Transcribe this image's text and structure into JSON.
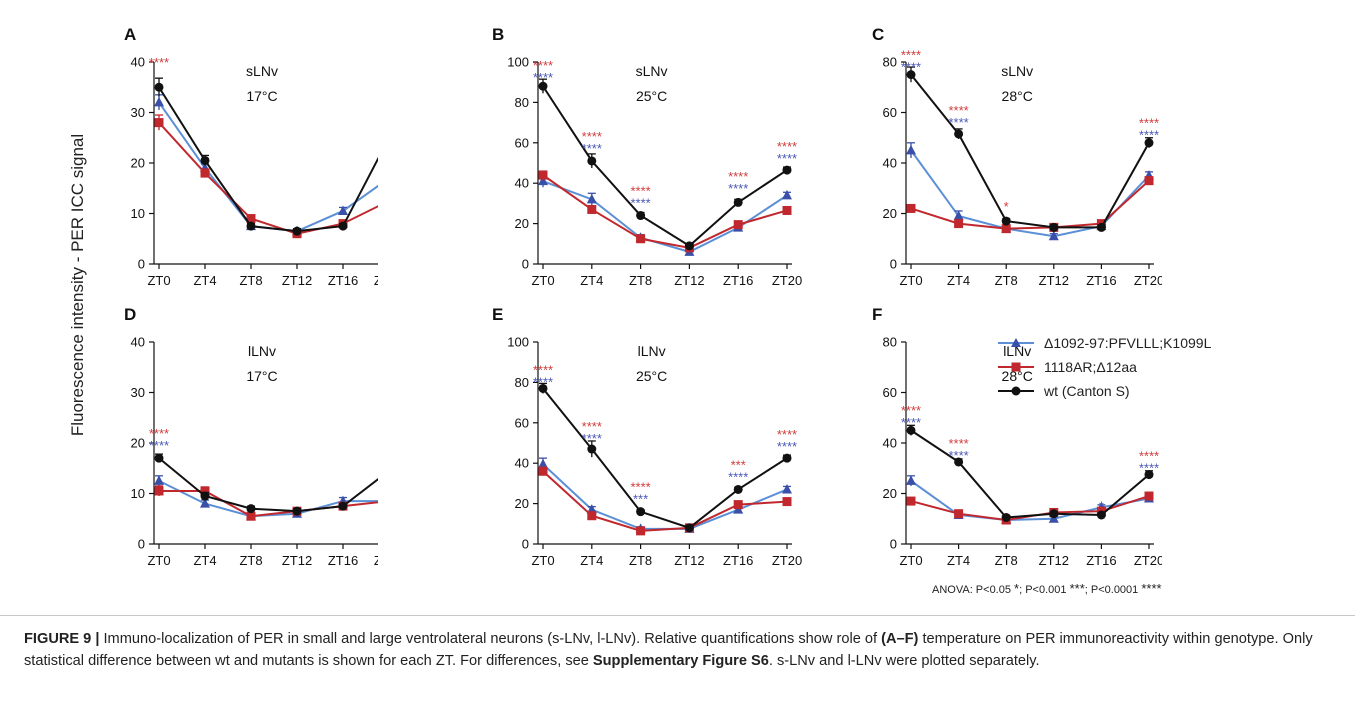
{
  "figure": {
    "y_axis_label": "Fluorescence intensity - PER ICC signal",
    "legend": [
      {
        "label": "Δ1092-97:PFVLLL;K1099L",
        "color": "#5b8fd6",
        "marker": "triangle-icon"
      },
      {
        "label": "1118AR;Δ12aa",
        "color": "#c0282e",
        "marker": "square-icon"
      },
      {
        "label": "wt (Canton S)",
        "color": "#111111",
        "marker": "circle-icon"
      }
    ],
    "anova": {
      "prefix": "ANOVA: P<0.05",
      "s1": "*",
      "mid1": "; P<0.001",
      "s2": "***",
      "mid2": "; P<0.0001",
      "s3": "****"
    },
    "caption": {
      "figure_label": "FIGURE 9 |",
      "t1": " Immuno-localization of PER in small and large ventrolateral neurons (s-LNv, l-LNv). Relative quantifications show role of ",
      "b1": "(A–F)",
      "t2": " temperature on PER immunoreactivity within genotype. Only statistical difference between wt and mutants is shown for each ZT. For differences, see ",
      "b2": "Supplementary Figure S6",
      "t3": ". s-LNv and l-LNv were plotted separately."
    }
  },
  "colors": {
    "blue": "#5b8fd6",
    "red": "#c0282e",
    "black": "#111111",
    "star_red": "#d23c3c",
    "star_blue": "#4a58b8"
  },
  "chart_data": [
    {
      "panel": "A",
      "type": "line",
      "title": "sLNv",
      "subtitle": "17°C",
      "categories": [
        "ZT0",
        "ZT4",
        "ZT8",
        "ZT12",
        "ZT16",
        "ZT20"
      ],
      "ylim": [
        0,
        40
      ],
      "yticks": [
        0,
        10,
        20,
        30,
        40
      ],
      "series": [
        {
          "name": "Δ1092-97:PFVLLL;K1099L",
          "color": "#5b8fd6",
          "marker": "triangle",
          "values": [
            32,
            19,
            7.5,
            6.5,
            10.5,
            17
          ],
          "err": [
            1.5,
            0.8,
            0.5,
            0.5,
            0.7,
            1.2
          ]
        },
        {
          "name": "1118AR;Δ12aa",
          "color": "#c0282e",
          "marker": "square",
          "values": [
            28,
            18,
            9,
            6,
            8,
            12.5
          ],
          "err": [
            1.5,
            0.8,
            0.5,
            0.5,
            0.5,
            0.8
          ]
        },
        {
          "name": "wt (Canton S)",
          "color": "#111111",
          "marker": "circle",
          "values": [
            35,
            20.5,
            7.5,
            6.5,
            7.5,
            25
          ],
          "err": [
            1.8,
            1,
            0.5,
            0.5,
            0.5,
            1.2
          ]
        }
      ],
      "sig": [
        {
          "category": "ZT0",
          "value": 39,
          "red": "****",
          "blue": ""
        },
        {
          "category": "ZT20",
          "value": 28,
          "red": "****",
          "blue": "****"
        }
      ]
    },
    {
      "panel": "B",
      "type": "line",
      "title": "sLNv",
      "subtitle": "25°C",
      "categories": [
        "ZT0",
        "ZT4",
        "ZT8",
        "ZT12",
        "ZT16",
        "ZT20"
      ],
      "ylim": [
        0,
        100
      ],
      "yticks": [
        0,
        20,
        40,
        60,
        80,
        100
      ],
      "series": [
        {
          "name": "Δ1092-97:PFVLLL;K1099L",
          "color": "#5b8fd6",
          "marker": "triangle",
          "values": [
            41,
            32,
            13,
            6,
            18,
            34
          ],
          "err": [
            3,
            3,
            1.5,
            1,
            1.5,
            1.5
          ]
        },
        {
          "name": "1118AR;Δ12aa",
          "color": "#c0282e",
          "marker": "square",
          "values": [
            44,
            27,
            12.5,
            8,
            19.5,
            26.5
          ],
          "err": [
            2,
            1.5,
            1,
            1,
            1,
            1
          ]
        },
        {
          "name": "wt (Canton S)",
          "color": "#111111",
          "marker": "circle",
          "values": [
            88,
            51,
            24,
            9,
            30.5,
            46.5
          ],
          "err": [
            3.5,
            3.5,
            1.5,
            1,
            1.5,
            1.5
          ]
        }
      ],
      "sig": [
        {
          "category": "ZT0",
          "value": 96,
          "red": "****",
          "blue": "****"
        },
        {
          "category": "ZT4",
          "value": 61,
          "red": "****",
          "blue": "****"
        },
        {
          "category": "ZT8",
          "value": 34,
          "red": "****",
          "blue": "****"
        },
        {
          "category": "ZT16",
          "value": 41,
          "red": "****",
          "blue": "****"
        },
        {
          "category": "ZT20",
          "value": 56,
          "red": "****",
          "blue": "****"
        }
      ]
    },
    {
      "panel": "C",
      "type": "line",
      "title": "sLNv",
      "subtitle": "28°C",
      "categories": [
        "ZT0",
        "ZT4",
        "ZT8",
        "ZT12",
        "ZT16",
        "ZT20"
      ],
      "ylim": [
        0,
        80
      ],
      "yticks": [
        0,
        20,
        40,
        60,
        80
      ],
      "series": [
        {
          "name": "Δ1092-97:PFVLLL;K1099L",
          "color": "#5b8fd6",
          "marker": "triangle",
          "values": [
            45,
            19,
            14,
            11,
            15,
            35
          ],
          "err": [
            3,
            2,
            1,
            1,
            1,
            1.5
          ]
        },
        {
          "name": "1118AR;Δ12aa",
          "color": "#c0282e",
          "marker": "square",
          "values": [
            22,
            16,
            14,
            14.5,
            16,
            33
          ],
          "err": [
            1,
            1,
            1,
            1,
            1,
            1.5
          ]
        },
        {
          "name": "wt (Canton S)",
          "color": "#111111",
          "marker": "circle",
          "values": [
            75,
            51.5,
            17,
            14.5,
            14.5,
            48
          ],
          "err": [
            3,
            2,
            1,
            1,
            1,
            2
          ]
        }
      ],
      "sig": [
        {
          "category": "ZT0",
          "value": 81,
          "red": "****",
          "blue": "****"
        },
        {
          "category": "ZT4",
          "value": 59,
          "red": "****",
          "blue": "****"
        },
        {
          "category": "ZT8",
          "value": 21,
          "red": "*",
          "blue": ""
        },
        {
          "category": "ZT20",
          "value": 54,
          "red": "****",
          "blue": "****"
        }
      ]
    },
    {
      "panel": "D",
      "type": "line",
      "title": "lLNv",
      "subtitle": "17°C",
      "categories": [
        "ZT0",
        "ZT4",
        "ZT8",
        "ZT12",
        "ZT16",
        "ZT20"
      ],
      "ylim": [
        0,
        40
      ],
      "yticks": [
        0,
        10,
        20,
        30,
        40
      ],
      "series": [
        {
          "name": "Δ1092-97:PFVLLL;K1099L",
          "color": "#5b8fd6",
          "marker": "triangle",
          "values": [
            12.5,
            8,
            5.5,
            6,
            8.5,
            8.5
          ],
          "err": [
            1,
            0.7,
            0.5,
            0.5,
            0.7,
            0.5
          ]
        },
        {
          "name": "1118AR;Δ12aa",
          "color": "#c0282e",
          "marker": "square",
          "values": [
            10.5,
            10.5,
            5.5,
            6.5,
            7.5,
            8.5
          ],
          "err": [
            1,
            0.8,
            0.5,
            0.5,
            0.5,
            0.5
          ]
        },
        {
          "name": "wt (Canton S)",
          "color": "#111111",
          "marker": "circle",
          "values": [
            17,
            9.5,
            7,
            6.5,
            7.5,
            14.5
          ],
          "err": [
            0.8,
            0.7,
            0.5,
            0.5,
            0.5,
            0.7
          ]
        }
      ],
      "sig": [
        {
          "category": "ZT0",
          "value": 21,
          "red": "****",
          "blue": "****"
        },
        {
          "category": "ZT20",
          "value": 18,
          "red": "****",
          "blue": "****"
        }
      ]
    },
    {
      "panel": "E",
      "type": "line",
      "title": "lLNv",
      "subtitle": "25°C",
      "categories": [
        "ZT0",
        "ZT4",
        "ZT8",
        "ZT12",
        "ZT16",
        "ZT20"
      ],
      "ylim": [
        0,
        100
      ],
      "yticks": [
        0,
        20,
        40,
        60,
        80,
        100
      ],
      "series": [
        {
          "name": "Δ1092-97:PFVLLL;K1099L",
          "color": "#5b8fd6",
          "marker": "triangle",
          "values": [
            39.5,
            17,
            7.5,
            7.5,
            17,
            27
          ],
          "err": [
            3,
            1.5,
            1,
            1,
            1.5,
            1.5
          ]
        },
        {
          "name": "1118AR;Δ12aa",
          "color": "#c0282e",
          "marker": "square",
          "values": [
            36,
            14,
            6.5,
            8,
            19.5,
            21
          ],
          "err": [
            2,
            1,
            1,
            1,
            1,
            1
          ]
        },
        {
          "name": "wt (Canton S)",
          "color": "#111111",
          "marker": "circle",
          "values": [
            77,
            47,
            16,
            8,
            27,
            42.5
          ],
          "err": [
            2.5,
            4,
            1,
            1,
            1,
            1.5
          ]
        }
      ],
      "sig": [
        {
          "category": "ZT0",
          "value": 84,
          "red": "****",
          "blue": "****"
        },
        {
          "category": "ZT4",
          "value": 56,
          "red": "****",
          "blue": "****"
        },
        {
          "category": "ZT8",
          "value": 26,
          "red": "****",
          "blue": "***"
        },
        {
          "category": "ZT16",
          "value": 37,
          "red": "***",
          "blue": "****"
        },
        {
          "category": "ZT20",
          "value": 52,
          "red": "****",
          "blue": "****"
        }
      ]
    },
    {
      "panel": "F",
      "type": "line",
      "title": "lLNv",
      "subtitle": "28°C",
      "categories": [
        "ZT0",
        "ZT4",
        "ZT8",
        "ZT12",
        "ZT16",
        "ZT20"
      ],
      "ylim": [
        0,
        80
      ],
      "yticks": [
        0,
        20,
        40,
        60,
        80
      ],
      "series": [
        {
          "name": "Δ1092-97:PFVLLL;K1099L",
          "color": "#5b8fd6",
          "marker": "triangle",
          "values": [
            25,
            11.5,
            9.5,
            10,
            14.5,
            18
          ],
          "err": [
            2,
            1,
            0.8,
            0.8,
            1,
            1
          ]
        },
        {
          "name": "1118AR;Δ12aa",
          "color": "#c0282e",
          "marker": "square",
          "values": [
            17,
            12,
            9.5,
            12.5,
            13,
            19
          ],
          "err": [
            1,
            0.8,
            0.8,
            0.8,
            1,
            1
          ]
        },
        {
          "name": "wt (Canton S)",
          "color": "#111111",
          "marker": "circle",
          "values": [
            45,
            32.5,
            10.5,
            12,
            11.5,
            27.5
          ],
          "err": [
            2,
            1.2,
            0.8,
            0.8,
            0.8,
            1.5
          ]
        }
      ],
      "sig": [
        {
          "category": "ZT0",
          "value": 51,
          "red": "****",
          "blue": "****"
        },
        {
          "category": "ZT4",
          "value": 38,
          "red": "****",
          "blue": "****"
        },
        {
          "category": "ZT16",
          "value": 18,
          "red": "",
          "blue": "*"
        },
        {
          "category": "ZT20",
          "value": 33,
          "red": "****",
          "blue": "****"
        }
      ]
    }
  ]
}
